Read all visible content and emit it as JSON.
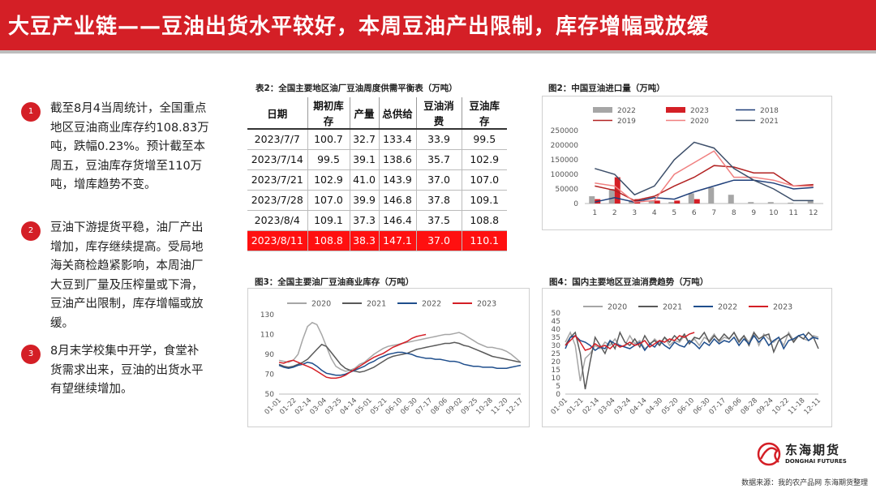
{
  "header": {
    "title": "大豆产业链——豆油出货水平较好，本周豆油产出限制，库存增幅或放缓"
  },
  "bullets": [
    {
      "num": "1",
      "text": "截至8月4当周统计，全国重点\n地区豆油商业库存约108.83万\n吨，跌幅0.23%。预计截至本\n周五，豆油库存货增至110万\n吨，增库趋势不变。"
    },
    {
      "num": "2",
      "text": "豆油下游提货平稳，油厂产出\n增加，库存继续提高。受局地\n海关商检趋紧影响，本周油厂\n大豆到厂量及压榨量或下滑，\n豆油产出限制，库存增幅或放\n缓。"
    },
    {
      "num": "3",
      "text": "8月末学校集中开学，食堂补\n货需求出来，豆油的出货水平\n有望继续增加。"
    }
  ],
  "table": {
    "title": "表2：全国主要地区油厂豆油周度供需平衡表（万吨）",
    "headers": [
      "日期",
      "期初库存",
      "产量",
      "总供给",
      "豆油消费",
      "豆油库存"
    ],
    "rows": [
      [
        "2023/7/7",
        "100.7",
        "32.7",
        "133.4",
        "33.9",
        "99.5"
      ],
      [
        "2023/7/14",
        "99.5",
        "39.1",
        "138.6",
        "35.7",
        "102.9"
      ],
      [
        "2023/7/21",
        "102.9",
        "41.0",
        "143.9",
        "37.0",
        "107.0"
      ],
      [
        "2023/7/28",
        "107.0",
        "39.9",
        "146.8",
        "37.8",
        "109.1"
      ],
      [
        "2023/8/4",
        "109.1",
        "37.3",
        "146.4",
        "37.5",
        "108.8"
      ],
      [
        "2023/8/11",
        "108.8",
        "38.3",
        "147.1",
        "37.0",
        "110.1"
      ]
    ],
    "highlight_row": 5,
    "highlight_color": "#ff1010"
  },
  "chart_data": [
    {
      "id": "import",
      "type": "bar",
      "title": "图2：中国豆油进口量（万吨）",
      "categories": [
        "1",
        "2",
        "3",
        "4",
        "5",
        "6",
        "7",
        "8",
        "9",
        "10",
        "11",
        "12"
      ],
      "ylim": [
        0,
        250000
      ],
      "yticks": [
        "0",
        "50000",
        "100000",
        "150000",
        "200000",
        "250000"
      ],
      "legend": [
        "2022",
        "2023",
        "2018",
        "2019",
        "2020",
        "2021"
      ],
      "bars": [
        {
          "name": "2022",
          "color": "#a6a6a6",
          "values": [
            25000,
            50000,
            10000,
            10000,
            5000,
            35000,
            55000,
            30000,
            5000,
            5000,
            3000,
            10000
          ]
        },
        {
          "name": "2023",
          "color": "#d41f26",
          "values": [
            15000,
            90000,
            15000,
            10000,
            10000,
            15000,
            null,
            null,
            null,
            null,
            null,
            null
          ]
        }
      ],
      "lines": [
        {
          "name": "2018",
          "color": "#1f3f7a",
          "values": [
            5000,
            20000,
            5000,
            20000,
            15000,
            40000,
            60000,
            80000,
            80000,
            70000,
            50000,
            55000
          ]
        },
        {
          "name": "2019",
          "color": "#b22222",
          "values": [
            60000,
            45000,
            10000,
            25000,
            60000,
            90000,
            130000,
            125000,
            105000,
            105000,
            60000,
            65000
          ]
        },
        {
          "name": "2020",
          "color": "#f08080",
          "values": [
            70000,
            60000,
            5000,
            10000,
            100000,
            140000,
            180000,
            90000,
            90000,
            80000,
            60000,
            60000
          ]
        },
        {
          "name": "2021",
          "color": "#3d4f6a",
          "values": [
            120000,
            100000,
            30000,
            60000,
            150000,
            210000,
            190000,
            120000,
            80000,
            50000,
            10000,
            10000
          ]
        }
      ]
    },
    {
      "id": "stock",
      "type": "line",
      "title": "图3：全国主要油厂豆油商业库存（万吨）",
      "ylim": [
        50,
        130
      ],
      "yticks": [
        "50",
        "70",
        "90",
        "110",
        "130"
      ],
      "xticks": [
        "01-01",
        "01-22",
        "02-14",
        "03-04",
        "03-25",
        "04-14",
        "05-01",
        "05-21",
        "06-10",
        "06-30",
        "07-17",
        "08-06",
        "09-02",
        "09-25",
        "10-28",
        "11-20",
        "12-17"
      ],
      "n_points": 52,
      "series": [
        {
          "name": "2020",
          "color": "#a6a6a6",
          "values": [
            84,
            83,
            82,
            84,
            90,
            105,
            118,
            122,
            120,
            110,
            98,
            86,
            78,
            75,
            73,
            74,
            76,
            80,
            82,
            86,
            90,
            93,
            96,
            98,
            99,
            100,
            101,
            102,
            103,
            104,
            105,
            106,
            107,
            108,
            109,
            110,
            110,
            111,
            112,
            110,
            107,
            104,
            101,
            99,
            97,
            97,
            96,
            95,
            93,
            90,
            86,
            82
          ]
        },
        {
          "name": "2021",
          "color": "#595959",
          "values": [
            80,
            78,
            77,
            78,
            80,
            82,
            85,
            90,
            95,
            100,
            98,
            92,
            86,
            80,
            76,
            74,
            73,
            72,
            73,
            75,
            77,
            80,
            83,
            86,
            88,
            89,
            90,
            91,
            93,
            95,
            96,
            97,
            98,
            99,
            100,
            101,
            101,
            102,
            101,
            99,
            98,
            96,
            94,
            92,
            90,
            88,
            87,
            86,
            85,
            84,
            83,
            82
          ]
        },
        {
          "name": "2022",
          "color": "#1f4e8c",
          "values": [
            79,
            77,
            76,
            77,
            79,
            80,
            82,
            81,
            78,
            74,
            71,
            70,
            69,
            69,
            70,
            72,
            74,
            76,
            78,
            81,
            83,
            86,
            88,
            90,
            91,
            92,
            92,
            91,
            90,
            88,
            87,
            86,
            86,
            85,
            85,
            84,
            83,
            83,
            82,
            80,
            79,
            78,
            78,
            77,
            77,
            77,
            76,
            76,
            76,
            77,
            78,
            79
          ]
        },
        {
          "name": "2023",
          "color": "#d41f26",
          "values": [
            82,
            81,
            83,
            84,
            82,
            80,
            78,
            76,
            73,
            70,
            67,
            66,
            66,
            67,
            69,
            72,
            75,
            78,
            81,
            84,
            87,
            89,
            91,
            94,
            97,
            99,
            101,
            103,
            106,
            108,
            109,
            110,
            null,
            null,
            null,
            null,
            null,
            null,
            null,
            null,
            null,
            null,
            null,
            null,
            null,
            null,
            null,
            null,
            null,
            null,
            null,
            null
          ]
        }
      ]
    },
    {
      "id": "consumption",
      "type": "line",
      "title": "图4：国内主要地区豆油消费趋势（万吨）",
      "ylim": [
        0,
        50
      ],
      "yticks": [
        "0",
        "5",
        "10",
        "15",
        "20",
        "25",
        "30",
        "35",
        "40",
        "45",
        "50"
      ],
      "xticks": [
        "01-01",
        "01-21",
        "02-14",
        "03-04",
        "03-24",
        "04-14",
        "04-30",
        "05-20",
        "06-10",
        "06-30",
        "07-17",
        "08-06",
        "08-28",
        "09-24",
        "10-22",
        "11-18",
        "12-11"
      ],
      "n_points": 52,
      "series": [
        {
          "name": "2020",
          "color": "#a6a6a6",
          "values": [
            32,
            38,
            30,
            8,
            22,
            25,
            30,
            28,
            32,
            30,
            34,
            29,
            30,
            36,
            31,
            33,
            28,
            30,
            34,
            31,
            35,
            30,
            33,
            32,
            36,
            31,
            34,
            30,
            35,
            33,
            37,
            32,
            35,
            34,
            38,
            33,
            36,
            32,
            38,
            30,
            37,
            34,
            32,
            35,
            30,
            38,
            33,
            36,
            34,
            33,
            36,
            35
          ]
        },
        {
          "name": "2021",
          "color": "#595959",
          "values": [
            30,
            35,
            38,
            25,
            3,
            20,
            35,
            30,
            25,
            33,
            28,
            38,
            32,
            30,
            34,
            29,
            36,
            31,
            33,
            30,
            35,
            32,
            36,
            33,
            37,
            31,
            35,
            34,
            38,
            32,
            36,
            33,
            37,
            34,
            38,
            32,
            36,
            30,
            38,
            34,
            36,
            37,
            26,
            33,
            35,
            37,
            32,
            36,
            34,
            38,
            35,
            28
          ]
        },
        {
          "name": "2022",
          "color": "#1f4e8c",
          "values": [
            28,
            35,
            36,
            33,
            32,
            30,
            27,
            29,
            28,
            33,
            31,
            30,
            29,
            28,
            30,
            32,
            27,
            31,
            29,
            33,
            30,
            28,
            32,
            30,
            29,
            33,
            31,
            28,
            32,
            30,
            34,
            31,
            33,
            32,
            35,
            30,
            34,
            31,
            36,
            32,
            35,
            30,
            33,
            35,
            28,
            33,
            34,
            36,
            37,
            33,
            35,
            34
          ]
        },
        {
          "name": "2023",
          "color": "#d41f26",
          "values": [
            30,
            33,
            36,
            32,
            27,
            28,
            31,
            29,
            30,
            28,
            31,
            29,
            30,
            32,
            30,
            31,
            33,
            29,
            31,
            33,
            32,
            34,
            33,
            36,
            35,
            37,
            38,
            null,
            null,
            null,
            null,
            null,
            null,
            null,
            null,
            null,
            null,
            null,
            null,
            null,
            null,
            null,
            null,
            null,
            null,
            null,
            null,
            null,
            null,
            null,
            null,
            null
          ]
        }
      ]
    }
  ],
  "logo": {
    "cn": "东海期货",
    "en": "DONGHAI FUTURES",
    "color": "#d41f26"
  },
  "footer": {
    "source": "数据来源：我的农产品网 东海期货整理"
  }
}
